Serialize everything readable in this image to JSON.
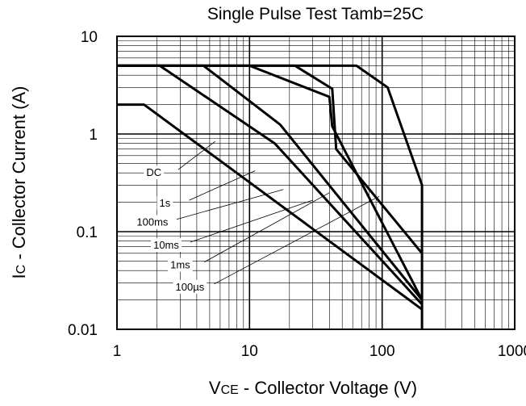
{
  "chart_data": {
    "type": "line",
    "title": "Single Pulse Test Tamb=25C",
    "xlabel": {
      "main": "V",
      "sub": "CE",
      "rest": " - Collector Voltage (V)"
    },
    "ylabel": {
      "main": "I",
      "sub": "C",
      "rest": " - Collector Current (A)"
    },
    "x_scale": "log",
    "y_scale": "log",
    "xlim": [
      1,
      1000
    ],
    "ylim": [
      0.01,
      10
    ],
    "x_ticks": [
      {
        "value": 1,
        "label": "1"
      },
      {
        "value": 10,
        "label": "10"
      },
      {
        "value": 100,
        "label": "100"
      },
      {
        "value": 1000,
        "label": "1000"
      }
    ],
    "y_ticks": [
      {
        "value": 10,
        "label": "10"
      },
      {
        "value": 1,
        "label": "1"
      },
      {
        "value": 0.1,
        "label": "0.1"
      },
      {
        "value": 0.01,
        "label": "0.01"
      }
    ],
    "grid": true,
    "series": [
      {
        "name": "DC",
        "points": [
          [
            1,
            2
          ],
          [
            1.6,
            2
          ],
          [
            200,
            0.016
          ]
        ]
      },
      {
        "name": "1s",
        "points": [
          [
            1,
            5
          ],
          [
            2.1,
            5
          ],
          [
            15.5,
            0.8
          ],
          [
            200,
            0.018
          ]
        ]
      },
      {
        "name": "100ms",
        "points": [
          [
            1,
            5
          ],
          [
            4.5,
            5
          ],
          [
            17,
            1.25
          ],
          [
            200,
            0.02
          ]
        ]
      },
      {
        "name": "10ms",
        "points": [
          [
            1,
            5
          ],
          [
            10,
            5
          ],
          [
            40,
            2.4
          ],
          [
            42,
            1.2
          ],
          [
            200,
            0.02
          ]
        ]
      },
      {
        "name": "1ms",
        "points": [
          [
            1,
            5
          ],
          [
            22,
            5
          ],
          [
            42,
            2.9
          ],
          [
            45,
            0.7
          ],
          [
            200,
            0.06
          ]
        ]
      },
      {
        "name": "100µs",
        "points": [
          [
            1,
            5
          ],
          [
            64,
            5
          ],
          [
            110,
            3
          ],
          [
            200,
            0.3
          ],
          [
            200,
            0.01
          ]
        ]
      }
    ]
  }
}
